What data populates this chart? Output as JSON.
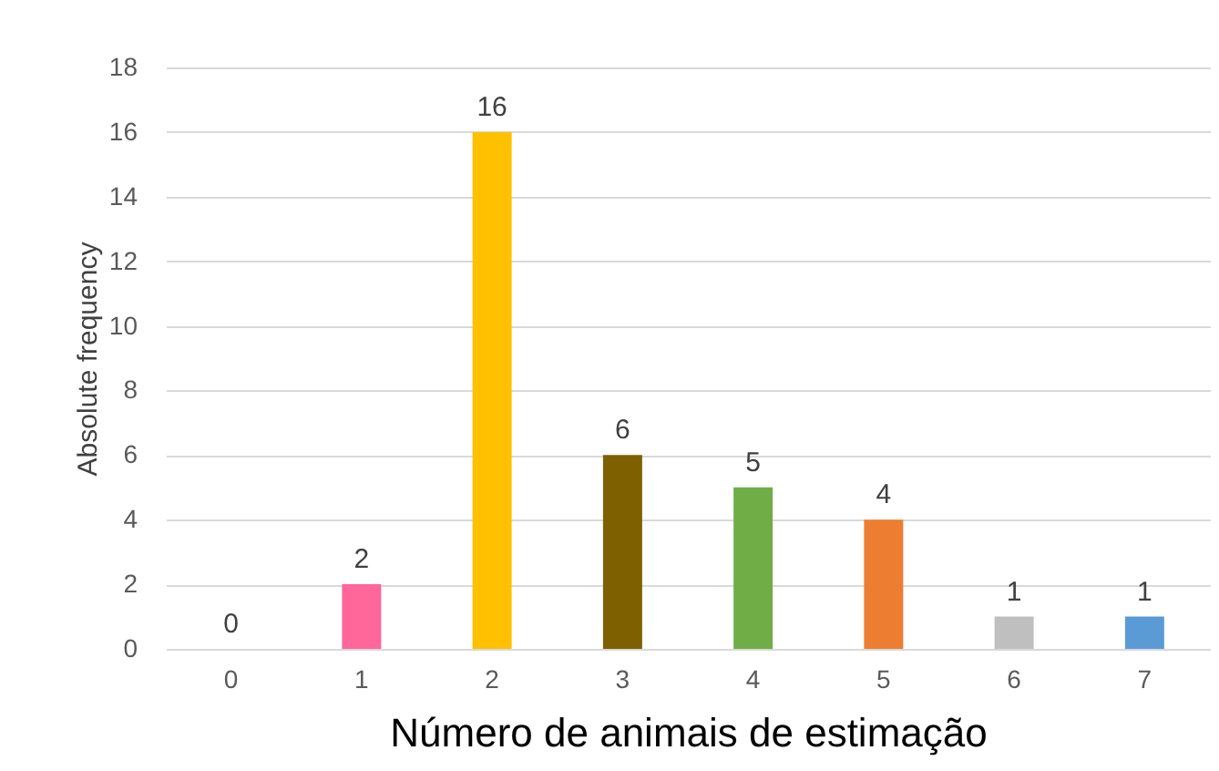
{
  "chart_data": {
    "type": "bar",
    "xlabel": "Número de animais de estimação",
    "ylabel": "Absolute frequency",
    "categories": [
      "0",
      "1",
      "2",
      "3",
      "4",
      "5",
      "6",
      "7"
    ],
    "values": [
      0,
      2,
      16,
      6,
      5,
      4,
      1,
      1
    ],
    "colors": [
      "#4472c4",
      "#ff6699",
      "#ffc000",
      "#7f6000",
      "#70ad47",
      "#ed7d31",
      "#bfbfbf",
      "#5b9bd5"
    ],
    "ylim": [
      0,
      18
    ],
    "yticks": [
      0,
      2,
      4,
      6,
      8,
      10,
      12,
      14,
      16,
      18
    ],
    "grid": "y",
    "data_labels": true,
    "legend": false
  }
}
